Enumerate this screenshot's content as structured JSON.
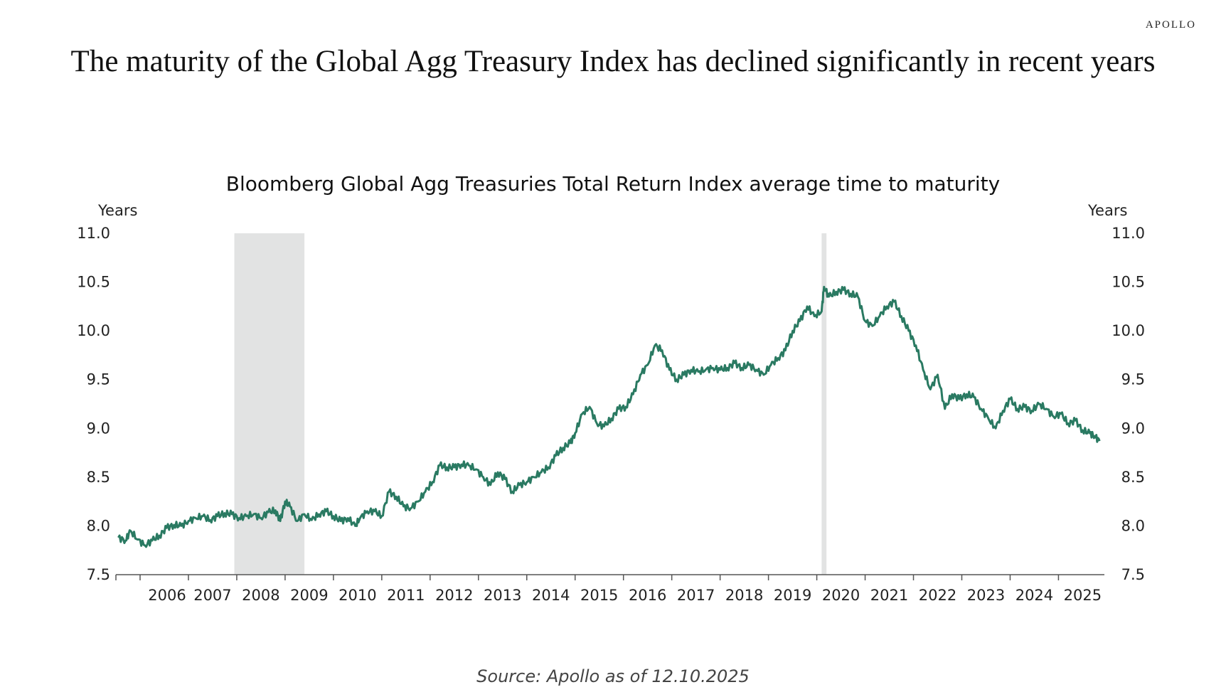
{
  "brand": "APOLLO",
  "headline": "The maturity of the Global Agg Treasury Index has declined significantly in recent years",
  "source": "Source: Apollo as of 12.10.2025",
  "colors": {
    "line": "#2a7a62",
    "recession": "#e2e3e3",
    "axis": "#555555"
  },
  "chart_data": {
    "type": "line",
    "title": "Bloomberg Global Agg Treasuries Total Return Index average time to maturity",
    "ylabel_left": "Years",
    "ylabel_right": "Years",
    "ylim": [
      7.5,
      11.0
    ],
    "xlim": [
      2005.5,
      2025.95
    ],
    "yticks": [
      "7.5",
      "8.0",
      "8.5",
      "9.0",
      "9.5",
      "10.0",
      "10.5",
      "11.0"
    ],
    "xticks": [
      "2006",
      "2007",
      "2008",
      "2009",
      "2010",
      "2011",
      "2012",
      "2013",
      "2014",
      "2015",
      "2016",
      "2017",
      "2018",
      "2019",
      "2020",
      "2021",
      "2022",
      "2023",
      "2024",
      "2025"
    ],
    "grid": false,
    "recession_shading": [
      {
        "start": 2007.95,
        "end": 2009.4
      },
      {
        "start": 2020.1,
        "end": 2020.2
      }
    ],
    "series": [
      {
        "name": "Average time to maturity",
        "x": [
          2005.55,
          2005.7,
          2005.8,
          2005.95,
          2006.1,
          2006.25,
          2006.4,
          2006.55,
          2006.7,
          2006.85,
          2007.0,
          2007.15,
          2007.3,
          2007.45,
          2007.6,
          2007.75,
          2007.9,
          2008.05,
          2008.2,
          2008.35,
          2008.5,
          2008.65,
          2008.8,
          2008.9,
          2009.0,
          2009.1,
          2009.25,
          2009.4,
          2009.55,
          2009.7,
          2009.85,
          2010.0,
          2010.15,
          2010.3,
          2010.45,
          2010.55,
          2010.7,
          2010.85,
          2011.0,
          2011.15,
          2011.3,
          2011.45,
          2011.6,
          2011.75,
          2011.9,
          2012.05,
          2012.2,
          2012.35,
          2012.5,
          2012.65,
          2012.8,
          2012.95,
          2013.1,
          2013.25,
          2013.4,
          2013.55,
          2013.7,
          2013.85,
          2014.0,
          2014.15,
          2014.3,
          2014.45,
          2014.6,
          2014.75,
          2014.9,
          2015.0,
          2015.15,
          2015.3,
          2015.45,
          2015.6,
          2015.75,
          2015.9,
          2016.05,
          2016.2,
          2016.35,
          2016.5,
          2016.65,
          2016.8,
          2016.95,
          2017.1,
          2017.25,
          2017.4,
          2017.55,
          2017.7,
          2017.85,
          2018.0,
          2018.15,
          2018.3,
          2018.45,
          2018.6,
          2018.75,
          2018.9,
          2019.05,
          2019.2,
          2019.35,
          2019.5,
          2019.65,
          2019.8,
          2019.95,
          2020.1,
          2020.15,
          2020.25,
          2020.4,
          2020.55,
          2020.7,
          2020.85,
          2021.0,
          2021.15,
          2021.3,
          2021.45,
          2021.6,
          2021.75,
          2021.9,
          2022.05,
          2022.2,
          2022.35,
          2022.5,
          2022.65,
          2022.8,
          2022.95,
          2023.1,
          2023.25,
          2023.4,
          2023.55,
          2023.7,
          2023.85,
          2024.0,
          2024.15,
          2024.3,
          2024.45,
          2024.6,
          2024.75,
          2024.9,
          2025.05,
          2025.2,
          2025.35,
          2025.5,
          2025.65,
          2025.75,
          2025.85
        ],
        "y": [
          7.88,
          7.85,
          7.95,
          7.86,
          7.8,
          7.85,
          7.9,
          7.98,
          8.01,
          8.0,
          8.05,
          8.08,
          8.1,
          8.06,
          8.1,
          8.13,
          8.12,
          8.08,
          8.1,
          8.12,
          8.08,
          8.14,
          8.16,
          8.05,
          8.25,
          8.2,
          8.05,
          8.12,
          8.06,
          8.12,
          8.15,
          8.1,
          8.05,
          8.08,
          8.0,
          8.08,
          8.15,
          8.15,
          8.1,
          8.35,
          8.3,
          8.2,
          8.18,
          8.25,
          8.35,
          8.45,
          8.62,
          8.6,
          8.6,
          8.63,
          8.62,
          8.58,
          8.5,
          8.42,
          8.55,
          8.48,
          8.35,
          8.42,
          8.45,
          8.5,
          8.55,
          8.6,
          8.72,
          8.8,
          8.85,
          8.95,
          9.15,
          9.22,
          9.05,
          9.02,
          9.1,
          9.2,
          9.22,
          9.35,
          9.55,
          9.65,
          9.85,
          9.8,
          9.6,
          9.5,
          9.55,
          9.6,
          9.58,
          9.6,
          9.62,
          9.6,
          9.62,
          9.67,
          9.62,
          9.65,
          9.6,
          9.55,
          9.65,
          9.72,
          9.8,
          10.0,
          10.1,
          10.25,
          10.15,
          10.2,
          10.45,
          10.35,
          10.4,
          10.42,
          10.38,
          10.35,
          10.1,
          10.05,
          10.15,
          10.25,
          10.3,
          10.15,
          10.0,
          9.85,
          9.6,
          9.4,
          9.55,
          9.2,
          9.35,
          9.3,
          9.35,
          9.32,
          9.2,
          9.1,
          9.0,
          9.18,
          9.3,
          9.2,
          9.22,
          9.18,
          9.25,
          9.2,
          9.12,
          9.15,
          9.05,
          9.08,
          8.98,
          8.95,
          8.92,
          8.87
        ]
      }
    ]
  }
}
